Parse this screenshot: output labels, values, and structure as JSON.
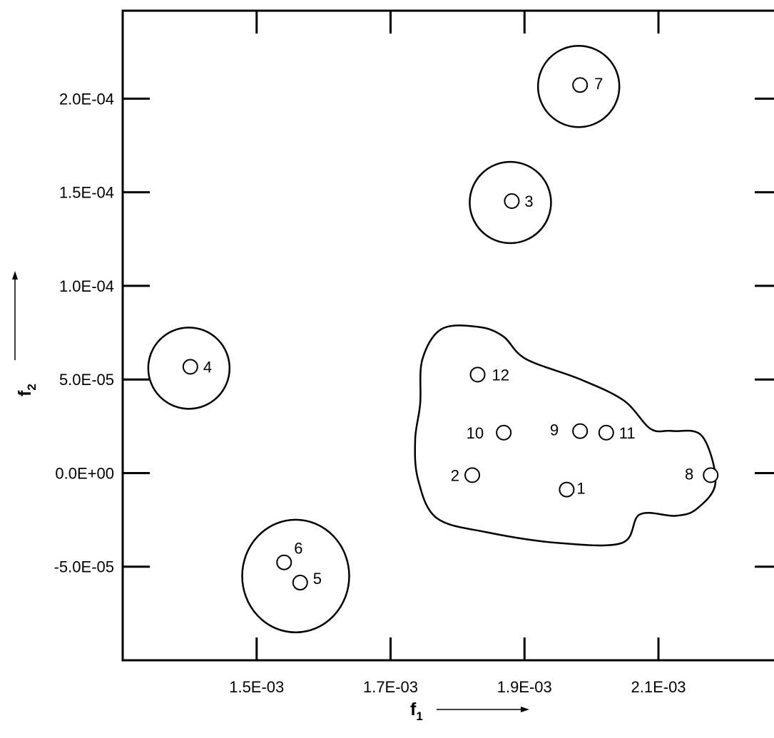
{
  "chart_data": {
    "type": "scatter",
    "x_axis": {
      "label": "f",
      "label_subscript": "1",
      "range": [
        0.0013,
        0.00228
      ],
      "ticks": [
        0.0015,
        0.0017,
        0.0019,
        0.0021
      ],
      "tick_labels": [
        "1.5E-03",
        "1.7E-03",
        "1.9E-03",
        "2.1E-03"
      ]
    },
    "y_axis": {
      "label": "f",
      "label_subscript": "2",
      "range": [
        -0.0001,
        0.000247
      ],
      "ticks": [
        -5e-05,
        0,
        5e-05,
        0.0001,
        0.00015,
        0.0002
      ],
      "tick_labels": [
        "-5.0E-05",
        "0.0E+00",
        "5.0E-05",
        "1.0E-04",
        "1.5E-04",
        "2.0E-04"
      ]
    },
    "points": [
      {
        "label": "1",
        "x": 0.001963,
        "y": -8.8e-06
      },
      {
        "label": "2",
        "x": 0.001822,
        "y": -1.1e-06
      },
      {
        "label": "3",
        "x": 0.001881,
        "y": 0.0001453
      },
      {
        "label": "4",
        "x": 0.001401,
        "y": 5.68e-05
      },
      {
        "label": "5",
        "x": 0.001565,
        "y": -5.85e-05
      },
      {
        "label": "6",
        "x": 0.001541,
        "y": -4.77e-05
      },
      {
        "label": "7",
        "x": 0.001983,
        "y": 0.0002073
      },
      {
        "label": "8",
        "x": 0.002178,
        "y": -1.1e-06
      },
      {
        "label": "9",
        "x": 0.001983,
        "y": 2.24e-05
      },
      {
        "label": "10",
        "x": 0.001869,
        "y": 2.16e-05
      },
      {
        "label": "11",
        "x": 0.002022,
        "y": 2.16e-05
      },
      {
        "label": "12",
        "x": 0.00183,
        "y": 5.26e-05
      }
    ],
    "clusters": [
      {
        "members": [
          "7"
        ]
      },
      {
        "members": [
          "3"
        ]
      },
      {
        "members": [
          "4"
        ]
      },
      {
        "members": [
          "5",
          "6"
        ]
      },
      {
        "members": [
          "1",
          "2",
          "8",
          "9",
          "10",
          "11",
          "12"
        ]
      }
    ]
  }
}
